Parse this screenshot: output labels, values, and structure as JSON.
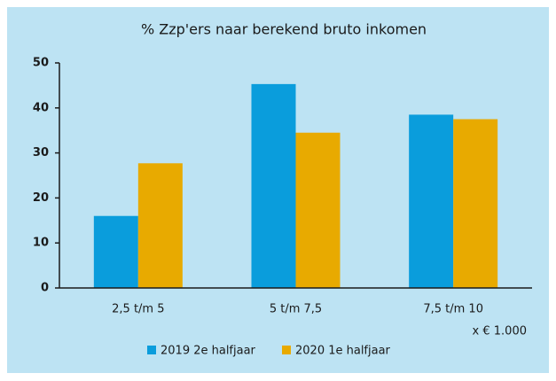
{
  "chart_data": {
    "type": "bar",
    "title": "% Zzp'ers naar berekend bruto inkomen",
    "categories": [
      "2,5 t/m 5",
      "5 t/m 7,5",
      "7,5 t/m 10"
    ],
    "series": [
      {
        "name": "2019 2e halfjaar",
        "color": "#0a9ddc",
        "values": [
          16,
          45.3,
          38.5
        ]
      },
      {
        "name": "2020 1e halfjaar",
        "color": "#e8aa00",
        "values": [
          27.7,
          34.5,
          37.5
        ]
      }
    ],
    "ylim": [
      0,
      50
    ],
    "yticks": [
      0,
      10,
      20,
      30,
      40,
      50
    ],
    "annotation": "x € 1.000",
    "legend": "bottom"
  }
}
